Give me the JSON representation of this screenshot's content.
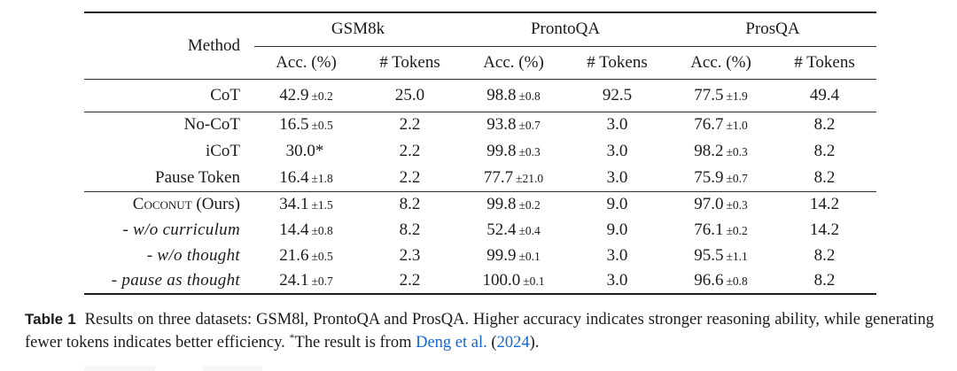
{
  "accent": {
    "link_color": "#1565d8",
    "text_color": "#1b1b1b"
  },
  "table": {
    "method_header": "Method",
    "groups": {
      "g1": "GSM8k",
      "g2": "ProntoQA",
      "g3": "ProsQA"
    },
    "sub_acc": "Acc. (%)",
    "sub_tokens": "# Tokens",
    "rows": {
      "cot": {
        "method": "CoT",
        "g1_acc": "42.9",
        "g1_pm": "±0.2",
        "g1_tok": "25.0",
        "g2_acc": "98.8",
        "g2_pm": "±0.8",
        "g2_tok": "92.5",
        "g3_acc": "77.5",
        "g3_pm": "±1.9",
        "g3_tok": "49.4"
      },
      "no_cot": {
        "method": "No-CoT",
        "g1_acc": "16.5",
        "g1_pm": "±0.5",
        "g1_tok": "2.2",
        "g2_acc": "93.8",
        "g2_pm": "±0.7",
        "g2_tok": "3.0",
        "g3_acc": "76.7",
        "g3_pm": "±1.0",
        "g3_tok": "8.2"
      },
      "icot": {
        "method": "iCoT",
        "g1_acc": "30.0*",
        "g1_pm": "",
        "g1_tok": "2.2",
        "g2_acc": "99.8",
        "g2_pm": "±0.3",
        "g2_tok": "3.0",
        "g3_acc": "98.2",
        "g3_pm": "±0.3",
        "g3_tok": "8.2"
      },
      "pause_token": {
        "method": "Pause Token",
        "g1_acc": "16.4",
        "g1_pm": "±1.8",
        "g1_tok": "2.2",
        "g2_acc": "77.7",
        "g2_pm": "±21.0",
        "g2_tok": "3.0",
        "g3_acc": "75.9",
        "g3_pm": "±0.7",
        "g3_tok": "8.2"
      },
      "coconut": {
        "method_sc": "Coconut",
        "method_rest": "(Ours)",
        "g1_acc": "34.1",
        "g1_pm": "±1.5",
        "g1_tok": "8.2",
        "g2_acc": "99.8",
        "g2_pm": "±0.2",
        "g2_tok": "9.0",
        "g3_acc": "97.0",
        "g3_pm": "±0.3",
        "g3_tok": "14.2"
      },
      "wo_curriculum": {
        "method": "- w/o curriculum",
        "g1_acc": "14.4",
        "g1_pm": "±0.8",
        "g1_tok": "8.2",
        "g2_acc": "52.4",
        "g2_pm": "±0.4",
        "g2_tok": "9.0",
        "g3_acc": "76.1",
        "g3_pm": "±0.2",
        "g3_tok": "14.2"
      },
      "wo_thought": {
        "method": "- w/o thought",
        "g1_acc": "21.6",
        "g1_pm": "±0.5",
        "g1_tok": "2.3",
        "g2_acc": "99.9",
        "g2_pm": "±0.1",
        "g2_tok": "3.0",
        "g3_acc": "95.5",
        "g3_pm": "±1.1",
        "g3_tok": "8.2"
      },
      "pause_as_thought": {
        "method": "- pause as thought",
        "g1_acc": "24.1",
        "g1_pm": "±0.7",
        "g1_tok": "2.2",
        "g2_acc": "100.0",
        "g2_pm": "±0.1",
        "g2_tok": "3.0",
        "g3_acc": "96.6",
        "g3_pm": "±0.8",
        "g3_tok": "8.2"
      }
    }
  },
  "caption": {
    "label": "Table 1",
    "body": "Results on three datasets: GSM8l, ProntoQA and ProsQA. Higher accuracy indicates stronger reasoning ability, while generating fewer tokens indicates better efficiency.",
    "footnote_marker": "*",
    "footnote_text": "The result is from",
    "link_author": "Deng et al.",
    "paren_open": "(",
    "link_year": "2024",
    "paren_close": ")."
  }
}
